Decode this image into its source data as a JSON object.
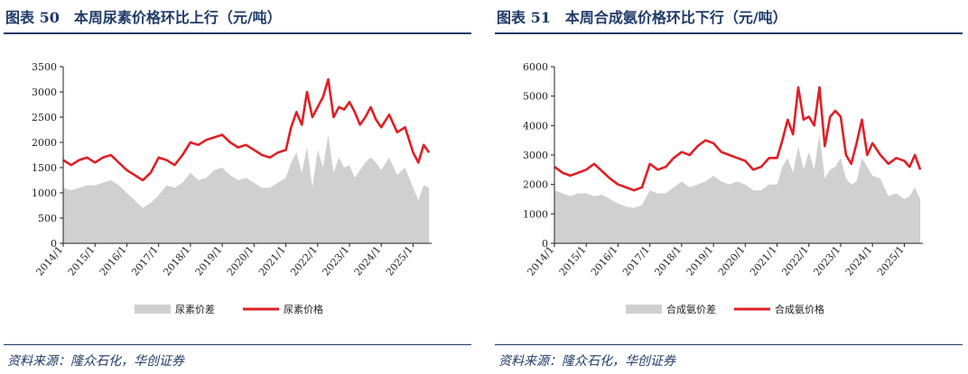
{
  "charts": [
    {
      "title": "图表 50　本周尿素价格环比上行（元/吨）",
      "source": "资料来源：隆众石化，华创证券",
      "colors": {
        "line": "#e01f26",
        "area": "#d0d0d0"
      },
      "chart_data": {
        "type": "area+line",
        "title": "图表 50　本周尿素价格环比上行（元/吨）",
        "xlabel": "",
        "ylabel": "",
        "xlim": [
          "2014-01",
          "2025-08"
        ],
        "ylim": [
          0,
          3500
        ],
        "yticks": [
          0,
          500,
          1000,
          1500,
          2000,
          2500,
          3000,
          3500
        ],
        "xticks": [
          "2014/1",
          "2015/1",
          "2016/1",
          "2017/1",
          "2018/1",
          "2019/1",
          "2020/1",
          "2021/1",
          "2022/1",
          "2023/1",
          "2024/1",
          "2025/1"
        ],
        "legend_position": "bottom",
        "grid": false,
        "series": [
          {
            "name": "尿素价差",
            "type": "area",
            "color": "#d0d0d0",
            "x": [
              "2014-01",
              "2014-04",
              "2014-07",
              "2014-10",
              "2015-01",
              "2015-04",
              "2015-07",
              "2015-10",
              "2016-01",
              "2016-04",
              "2016-07",
              "2016-10",
              "2017-01",
              "2017-04",
              "2017-07",
              "2017-10",
              "2018-01",
              "2018-04",
              "2018-07",
              "2018-10",
              "2019-01",
              "2019-04",
              "2019-07",
              "2019-10",
              "2020-01",
              "2020-04",
              "2020-07",
              "2020-10",
              "2021-01",
              "2021-03",
              "2021-05",
              "2021-07",
              "2021-09",
              "2021-11",
              "2022-01",
              "2022-03",
              "2022-05",
              "2022-07",
              "2022-09",
              "2022-11",
              "2023-01",
              "2023-03",
              "2023-05",
              "2023-07",
              "2023-09",
              "2023-11",
              "2024-01",
              "2024-04",
              "2024-07",
              "2024-10",
              "2025-01",
              "2025-03",
              "2025-05",
              "2025-07"
            ],
            "values": [
              1100,
              1050,
              1100,
              1150,
              1150,
              1200,
              1250,
              1150,
              1000,
              850,
              700,
              800,
              950,
              1150,
              1100,
              1200,
              1400,
              1250,
              1300,
              1450,
              1500,
              1350,
              1250,
              1300,
              1200,
              1100,
              1100,
              1200,
              1300,
              1600,
              1800,
              1400,
              1900,
              1100,
              1850,
              1500,
              2150,
              1400,
              1700,
              1500,
              1550,
              1300,
              1450,
              1600,
              1700,
              1600,
              1450,
              1700,
              1350,
              1500,
              1100,
              850,
              1150,
              1100
            ]
          },
          {
            "name": "尿素价格",
            "type": "line",
            "color": "#e01f26",
            "x": [
              "2014-01",
              "2014-04",
              "2014-07",
              "2014-10",
              "2015-01",
              "2015-04",
              "2015-07",
              "2015-10",
              "2016-01",
              "2016-04",
              "2016-07",
              "2016-10",
              "2017-01",
              "2017-04",
              "2017-07",
              "2017-10",
              "2018-01",
              "2018-04",
              "2018-07",
              "2018-10",
              "2019-01",
              "2019-04",
              "2019-07",
              "2019-10",
              "2020-01",
              "2020-04",
              "2020-07",
              "2020-10",
              "2021-01",
              "2021-03",
              "2021-05",
              "2021-07",
              "2021-09",
              "2021-11",
              "2022-01",
              "2022-03",
              "2022-05",
              "2022-07",
              "2022-09",
              "2022-11",
              "2023-01",
              "2023-03",
              "2023-05",
              "2023-07",
              "2023-09",
              "2023-11",
              "2024-01",
              "2024-04",
              "2024-07",
              "2024-10",
              "2025-01",
              "2025-03",
              "2025-05",
              "2025-07"
            ],
            "values": [
              1650,
              1550,
              1650,
              1700,
              1600,
              1700,
              1750,
              1600,
              1450,
              1350,
              1250,
              1400,
              1700,
              1650,
              1550,
              1750,
              2000,
              1950,
              2050,
              2100,
              2150,
              2000,
              1900,
              1950,
              1850,
              1750,
              1700,
              1800,
              1850,
              2300,
              2600,
              2350,
              3000,
              2500,
              2700,
              2900,
              3250,
              2500,
              2700,
              2650,
              2800,
              2600,
              2350,
              2500,
              2700,
              2450,
              2300,
              2550,
              2200,
              2300,
              1800,
              1600,
              1950,
              1800
            ]
          }
        ]
      }
    },
    {
      "title": "图表 51　本周合成氨价格环比下行（元/吨）",
      "source": "资料来源：隆众石化，华创证券",
      "colors": {
        "line": "#e01f26",
        "area": "#d0d0d0"
      },
      "chart_data": {
        "type": "area+line",
        "title": "图表 51　本周合成氨价格环比下行（元/吨）",
        "xlabel": "",
        "ylabel": "",
        "xlim": [
          "2014-01",
          "2025-08"
        ],
        "ylim": [
          0,
          6000
        ],
        "yticks": [
          0,
          1000,
          2000,
          3000,
          4000,
          5000,
          6000
        ],
        "xticks": [
          "2014/1",
          "2015/1",
          "2016/1",
          "2017/1",
          "2018/1",
          "2019/1",
          "2020/1",
          "2021/1",
          "2022/1",
          "2023/1",
          "2024/1",
          "2025/1"
        ],
        "legend_position": "bottom",
        "grid": false,
        "series": [
          {
            "name": "合成氨价差",
            "type": "area",
            "color": "#d0d0d0",
            "x": [
              "2014-01",
              "2014-04",
              "2014-07",
              "2014-10",
              "2015-01",
              "2015-04",
              "2015-07",
              "2015-10",
              "2016-01",
              "2016-04",
              "2016-07",
              "2016-10",
              "2017-01",
              "2017-04",
              "2017-07",
              "2017-10",
              "2018-01",
              "2018-04",
              "2018-07",
              "2018-10",
              "2019-01",
              "2019-04",
              "2019-07",
              "2019-10",
              "2020-01",
              "2020-04",
              "2020-07",
              "2020-10",
              "2021-01",
              "2021-03",
              "2021-05",
              "2021-07",
              "2021-09",
              "2021-11",
              "2022-01",
              "2022-03",
              "2022-05",
              "2022-07",
              "2022-09",
              "2022-11",
              "2023-01",
              "2023-03",
              "2023-05",
              "2023-07",
              "2023-09",
              "2023-11",
              "2024-01",
              "2024-04",
              "2024-07",
              "2024-10",
              "2025-01",
              "2025-03",
              "2025-05",
              "2025-07"
            ],
            "values": [
              1800,
              1700,
              1600,
              1700,
              1700,
              1600,
              1650,
              1500,
              1350,
              1250,
              1200,
              1300,
              1800,
              1700,
              1700,
              1900,
              2100,
              1900,
              2000,
              2100,
              2300,
              2100,
              2000,
              2100,
              2000,
              1800,
              1800,
              2000,
              2000,
              2600,
              2900,
              2400,
              3300,
              2500,
              3100,
              2500,
              3700,
              2200,
              2500,
              2600,
              2900,
              2200,
              2000,
              2100,
              2900,
              2600,
              2300,
              2200,
              1600,
              1700,
              1500,
              1600,
              1900,
              1500
            ]
          },
          {
            "name": "合成氨价格",
            "type": "line",
            "color": "#e01f26",
            "x": [
              "2014-01",
              "2014-04",
              "2014-07",
              "2014-10",
              "2015-01",
              "2015-04",
              "2015-07",
              "2015-10",
              "2016-01",
              "2016-04",
              "2016-07",
              "2016-10",
              "2017-01",
              "2017-04",
              "2017-07",
              "2017-10",
              "2018-01",
              "2018-04",
              "2018-07",
              "2018-10",
              "2019-01",
              "2019-04",
              "2019-07",
              "2019-10",
              "2020-01",
              "2020-04",
              "2020-07",
              "2020-10",
              "2021-01",
              "2021-03",
              "2021-05",
              "2021-07",
              "2021-09",
              "2021-11",
              "2022-01",
              "2022-03",
              "2022-05",
              "2022-07",
              "2022-09",
              "2022-11",
              "2023-01",
              "2023-03",
              "2023-05",
              "2023-07",
              "2023-09",
              "2023-11",
              "2024-01",
              "2024-04",
              "2024-07",
              "2024-10",
              "2025-01",
              "2025-03",
              "2025-05",
              "2025-07"
            ],
            "values": [
              2600,
              2400,
              2300,
              2400,
              2500,
              2700,
              2450,
              2200,
              2000,
              1900,
              1800,
              1900,
              2700,
              2500,
              2600,
              2900,
              3100,
              3000,
              3300,
              3500,
              3400,
              3100,
              3000,
              2900,
              2800,
              2500,
              2600,
              2900,
              2900,
              3500,
              4200,
              3700,
              5300,
              4200,
              4300,
              4000,
              5300,
              3300,
              4300,
              4500,
              4300,
              3000,
              2700,
              3400,
              4200,
              3000,
              3400,
              3000,
              2700,
              2900,
              2800,
              2600,
              3000,
              2500
            ]
          }
        ]
      }
    }
  ]
}
